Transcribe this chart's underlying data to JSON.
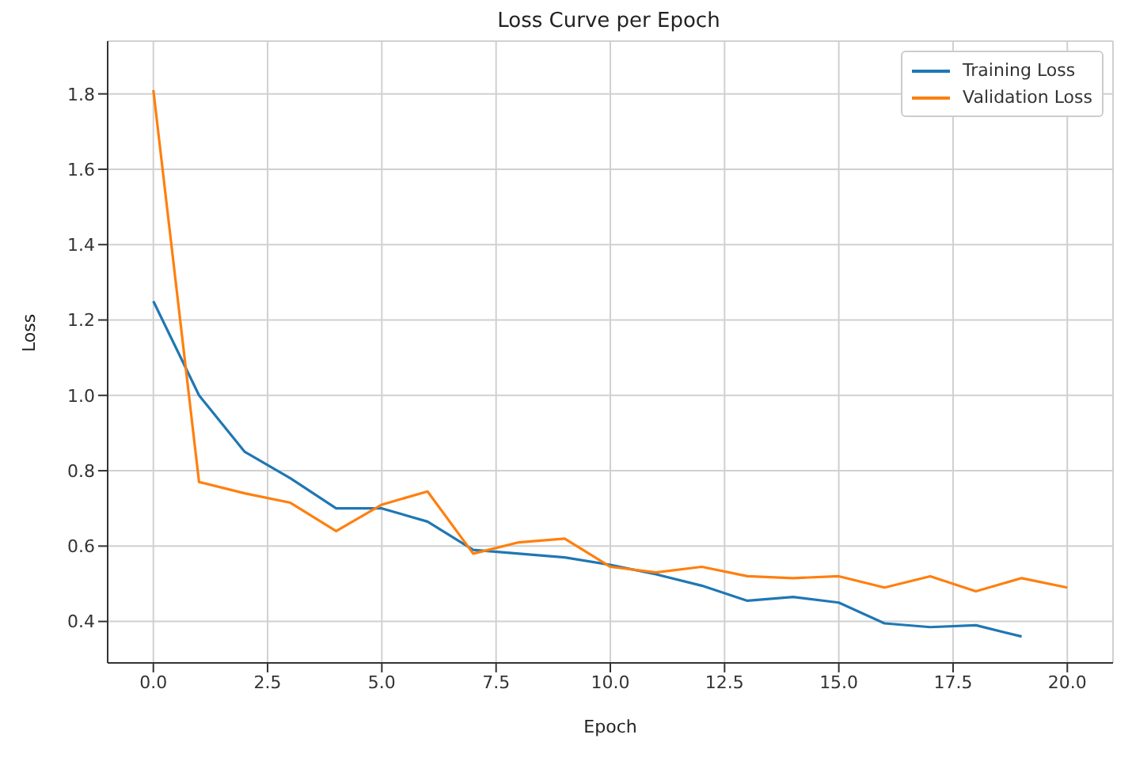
{
  "chart_data": {
    "type": "line",
    "title": "Loss Curve per Epoch",
    "xlabel": "Epoch",
    "ylabel": "Loss",
    "xlim": [
      -1,
      21
    ],
    "xticks": [
      {
        "value": 0,
        "label": "0.0"
      },
      {
        "value": 2.5,
        "label": "2.5"
      },
      {
        "value": 5,
        "label": "5.0"
      },
      {
        "value": 7.5,
        "label": "7.5"
      },
      {
        "value": 10,
        "label": "10.0"
      },
      {
        "value": 12.5,
        "label": "12.5"
      },
      {
        "value": 15,
        "label": "15.0"
      },
      {
        "value": 17.5,
        "label": "17.5"
      },
      {
        "value": 20,
        "label": "20.0"
      }
    ],
    "ylim": [
      0.29,
      1.94
    ],
    "yticks": [
      0.4,
      {
        "value": 0.6,
        "label": "0.6"
      },
      0.8,
      {
        "value": 1,
        "label": "1.0"
      },
      1.2,
      1.4,
      1.6,
      1.8
    ],
    "grid": true,
    "legend": "top right",
    "marker": "none",
    "line_style": "solid",
    "series": [
      {
        "name": "Training Loss",
        "color": "#1f77b4",
        "x": [
          0,
          1,
          2,
          3,
          4,
          5,
          6,
          7,
          8,
          9,
          10,
          11,
          12,
          13,
          14,
          15,
          16,
          17,
          18,
          19
        ],
        "values": [
          1.25,
          1.0,
          0.85,
          0.78,
          0.7,
          0.7,
          0.665,
          0.59,
          0.58,
          0.57,
          0.55,
          0.525,
          0.495,
          0.455,
          0.465,
          0.45,
          0.395,
          0.385,
          0.39,
          0.36
        ]
      },
      {
        "name": "Validation Loss",
        "color": "#ff7f0e",
        "x": [
          0,
          1,
          2,
          3,
          4,
          5,
          6,
          7,
          8,
          9,
          10,
          11,
          12,
          13,
          14,
          15,
          16,
          17,
          18,
          19,
          20
        ],
        "values": [
          1.81,
          0.77,
          0.74,
          0.715,
          0.64,
          0.71,
          0.745,
          0.58,
          0.61,
          0.62,
          0.545,
          0.53,
          0.545,
          0.52,
          0.515,
          0.52,
          0.49,
          0.52,
          0.48,
          0.515,
          0.49
        ]
      }
    ]
  }
}
